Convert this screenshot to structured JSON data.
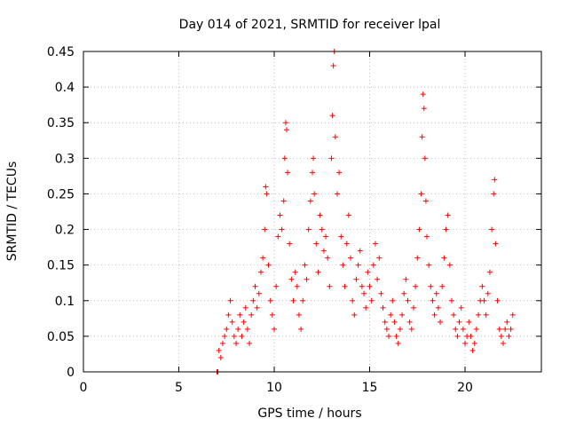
{
  "chart_data": {
    "type": "scatter",
    "title": "Day 014 of 2021, SRMTID for receiver lpal",
    "xlabel": "GPS time / hours",
    "ylabel": "SRMTID / TECUs",
    "xlim": [
      0,
      24
    ],
    "ylim": [
      0,
      0.45
    ],
    "xticks": [
      0,
      5,
      10,
      15,
      20
    ],
    "xtick_labels": [
      "0",
      "5",
      "10",
      "15",
      "20"
    ],
    "yticks": [
      0,
      0.05,
      0.1,
      0.15,
      0.2,
      0.25,
      0.3,
      0.35,
      0.4,
      0.45
    ],
    "ytick_labels": [
      "0",
      "0.05",
      "0.1",
      "0.15",
      "0.2",
      "0.25",
      "0.3",
      "0.35",
      "0.4",
      "0.45"
    ],
    "grid": true,
    "marker": "+",
    "color": "#ff0000",
    "series": [
      {
        "name": "SRMTID",
        "points": [
          [
            7.0,
            0.0
          ],
          [
            7.05,
            0.0
          ],
          [
            7.1,
            0.03
          ],
          [
            7.2,
            0.02
          ],
          [
            7.3,
            0.04
          ],
          [
            7.4,
            0.05
          ],
          [
            7.5,
            0.06
          ],
          [
            7.6,
            0.08
          ],
          [
            7.7,
            0.1
          ],
          [
            7.8,
            0.07
          ],
          [
            7.9,
            0.05
          ],
          [
            8.0,
            0.04
          ],
          [
            8.1,
            0.06
          ],
          [
            8.2,
            0.08
          ],
          [
            8.3,
            0.05
          ],
          [
            8.4,
            0.07
          ],
          [
            8.5,
            0.09
          ],
          [
            8.6,
            0.06
          ],
          [
            8.7,
            0.04
          ],
          [
            8.8,
            0.08
          ],
          [
            8.9,
            0.1
          ],
          [
            9.0,
            0.12
          ],
          [
            9.1,
            0.09
          ],
          [
            9.2,
            0.11
          ],
          [
            9.3,
            0.14
          ],
          [
            9.4,
            0.16
          ],
          [
            9.5,
            0.2
          ],
          [
            9.55,
            0.26
          ],
          [
            9.6,
            0.25
          ],
          [
            9.7,
            0.15
          ],
          [
            9.8,
            0.1
          ],
          [
            9.9,
            0.08
          ],
          [
            10.0,
            0.06
          ],
          [
            10.1,
            0.12
          ],
          [
            10.2,
            0.19
          ],
          [
            10.3,
            0.22
          ],
          [
            10.4,
            0.2
          ],
          [
            10.5,
            0.24
          ],
          [
            10.55,
            0.3
          ],
          [
            10.6,
            0.35
          ],
          [
            10.65,
            0.34
          ],
          [
            10.7,
            0.28
          ],
          [
            10.8,
            0.18
          ],
          [
            10.9,
            0.13
          ],
          [
            11.0,
            0.1
          ],
          [
            11.1,
            0.14
          ],
          [
            11.2,
            0.12
          ],
          [
            11.3,
            0.08
          ],
          [
            11.4,
            0.06
          ],
          [
            11.5,
            0.1
          ],
          [
            11.6,
            0.15
          ],
          [
            11.7,
            0.13
          ],
          [
            11.8,
            0.2
          ],
          [
            11.9,
            0.24
          ],
          [
            12.0,
            0.28
          ],
          [
            12.05,
            0.3
          ],
          [
            12.1,
            0.25
          ],
          [
            12.2,
            0.18
          ],
          [
            12.3,
            0.14
          ],
          [
            12.4,
            0.22
          ],
          [
            12.5,
            0.2
          ],
          [
            12.6,
            0.17
          ],
          [
            12.7,
            0.19
          ],
          [
            12.8,
            0.16
          ],
          [
            12.9,
            0.12
          ],
          [
            13.0,
            0.3
          ],
          [
            13.05,
            0.36
          ],
          [
            13.1,
            0.43
          ],
          [
            13.15,
            0.45
          ],
          [
            13.2,
            0.33
          ],
          [
            13.3,
            0.25
          ],
          [
            13.4,
            0.28
          ],
          [
            13.5,
            0.19
          ],
          [
            13.6,
            0.15
          ],
          [
            13.7,
            0.12
          ],
          [
            13.8,
            0.18
          ],
          [
            13.9,
            0.22
          ],
          [
            14.0,
            0.16
          ],
          [
            14.1,
            0.1
          ],
          [
            14.2,
            0.08
          ],
          [
            14.3,
            0.13
          ],
          [
            14.4,
            0.15
          ],
          [
            14.5,
            0.17
          ],
          [
            14.6,
            0.12
          ],
          [
            14.7,
            0.11
          ],
          [
            14.8,
            0.09
          ],
          [
            14.9,
            0.14
          ],
          [
            15.0,
            0.12
          ],
          [
            15.1,
            0.1
          ],
          [
            15.2,
            0.15
          ],
          [
            15.3,
            0.18
          ],
          [
            15.4,
            0.13
          ],
          [
            15.5,
            0.16
          ],
          [
            15.6,
            0.11
          ],
          [
            15.7,
            0.09
          ],
          [
            15.8,
            0.07
          ],
          [
            15.9,
            0.06
          ],
          [
            16.0,
            0.05
          ],
          [
            16.1,
            0.08
          ],
          [
            16.2,
            0.1
          ],
          [
            16.3,
            0.07
          ],
          [
            16.4,
            0.05
          ],
          [
            16.5,
            0.04
          ],
          [
            16.6,
            0.06
          ],
          [
            16.7,
            0.08
          ],
          [
            16.8,
            0.11
          ],
          [
            16.9,
            0.13
          ],
          [
            17.0,
            0.1
          ],
          [
            17.1,
            0.07
          ],
          [
            17.2,
            0.06
          ],
          [
            17.3,
            0.09
          ],
          [
            17.4,
            0.12
          ],
          [
            17.5,
            0.16
          ],
          [
            17.6,
            0.2
          ],
          [
            17.7,
            0.25
          ],
          [
            17.75,
            0.33
          ],
          [
            17.8,
            0.39
          ],
          [
            17.85,
            0.37
          ],
          [
            17.9,
            0.3
          ],
          [
            17.95,
            0.24
          ],
          [
            18.0,
            0.19
          ],
          [
            18.1,
            0.15
          ],
          [
            18.2,
            0.12
          ],
          [
            18.3,
            0.1
          ],
          [
            18.4,
            0.08
          ],
          [
            18.5,
            0.11
          ],
          [
            18.6,
            0.09
          ],
          [
            18.7,
            0.07
          ],
          [
            18.8,
            0.12
          ],
          [
            18.9,
            0.16
          ],
          [
            19.0,
            0.2
          ],
          [
            19.1,
            0.22
          ],
          [
            19.2,
            0.15
          ],
          [
            19.3,
            0.1
          ],
          [
            19.4,
            0.08
          ],
          [
            19.5,
            0.06
          ],
          [
            19.6,
            0.05
          ],
          [
            19.7,
            0.07
          ],
          [
            19.8,
            0.09
          ],
          [
            19.9,
            0.06
          ],
          [
            20.0,
            0.04
          ],
          [
            20.1,
            0.05
          ],
          [
            20.2,
            0.07
          ],
          [
            20.3,
            0.05
          ],
          [
            20.4,
            0.03
          ],
          [
            20.5,
            0.04
          ],
          [
            20.6,
            0.06
          ],
          [
            20.7,
            0.08
          ],
          [
            20.8,
            0.1
          ],
          [
            20.9,
            0.12
          ],
          [
            21.0,
            0.1
          ],
          [
            21.1,
            0.08
          ],
          [
            21.2,
            0.11
          ],
          [
            21.3,
            0.14
          ],
          [
            21.4,
            0.2
          ],
          [
            21.5,
            0.25
          ],
          [
            21.55,
            0.27
          ],
          [
            21.6,
            0.18
          ],
          [
            21.7,
            0.1
          ],
          [
            21.8,
            0.06
          ],
          [
            21.9,
            0.05
          ],
          [
            22.0,
            0.04
          ],
          [
            22.1,
            0.06
          ],
          [
            22.2,
            0.07
          ],
          [
            22.3,
            0.05
          ],
          [
            22.4,
            0.06
          ],
          [
            22.5,
            0.08
          ]
        ]
      }
    ]
  }
}
